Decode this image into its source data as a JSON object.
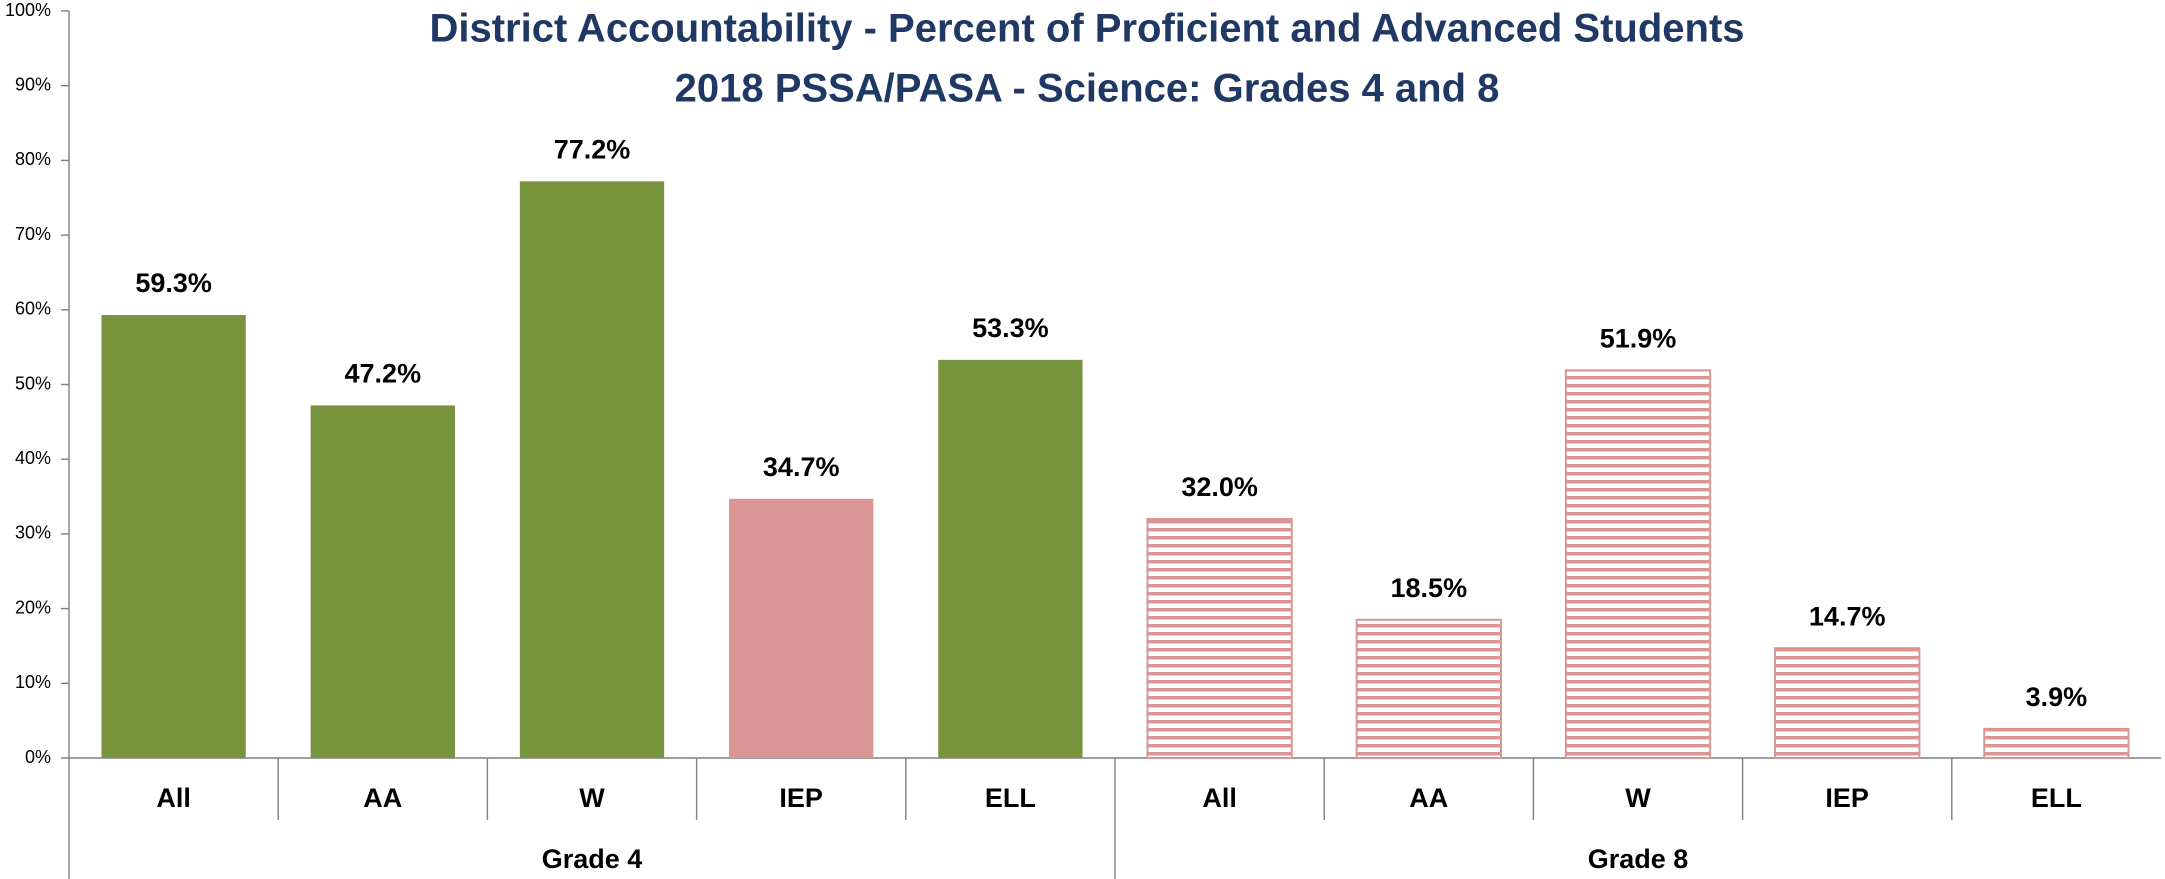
{
  "chart_data": {
    "type": "bar",
    "title": "District Accountability - Percent of Proficient and Advanced Students",
    "subtitle": "2018 PSSA/PASA -  Science: Grades 4 and 8",
    "groups": [
      {
        "name": "Grade 4",
        "categories": [
          "All",
          "AA",
          "W",
          "IEP",
          "ELL"
        ],
        "values": [
          59.3,
          47.2,
          77.2,
          34.7,
          53.3
        ],
        "value_labels": [
          "59.3%",
          "47.2%",
          "77.2%",
          "34.7%",
          "53.3%"
        ],
        "colors": [
          "#77933c",
          "#77933c",
          "#77933c",
          "#d99694",
          "#77933c"
        ],
        "hatched": false
      },
      {
        "name": "Grade 8",
        "categories": [
          "All",
          "AA",
          "W",
          "IEP",
          "ELL"
        ],
        "values": [
          32.0,
          18.5,
          51.9,
          14.7,
          3.9
        ],
        "value_labels": [
          "32.0%",
          "18.5%",
          "51.9%",
          "14.7%",
          "3.9%"
        ],
        "colors": [
          "#d99694",
          "#d99694",
          "#d99694",
          "#d99694",
          "#d99694"
        ],
        "hatched": true
      }
    ],
    "ylim": [
      0,
      100
    ],
    "yticks": [
      {
        "value": 0,
        "label": "0%"
      },
      {
        "value": 10,
        "label": "10%"
      },
      {
        "value": 20,
        "label": "20%"
      },
      {
        "value": 30,
        "label": "30%"
      },
      {
        "value": 40,
        "label": "40%"
      },
      {
        "value": 50,
        "label": "50%"
      },
      {
        "value": 60,
        "label": "60%"
      },
      {
        "value": 70,
        "label": "70%"
      },
      {
        "value": 80,
        "label": "80%"
      },
      {
        "value": 90,
        "label": "90%"
      },
      {
        "value": 100,
        "label": "100%"
      }
    ],
    "grid": false
  }
}
